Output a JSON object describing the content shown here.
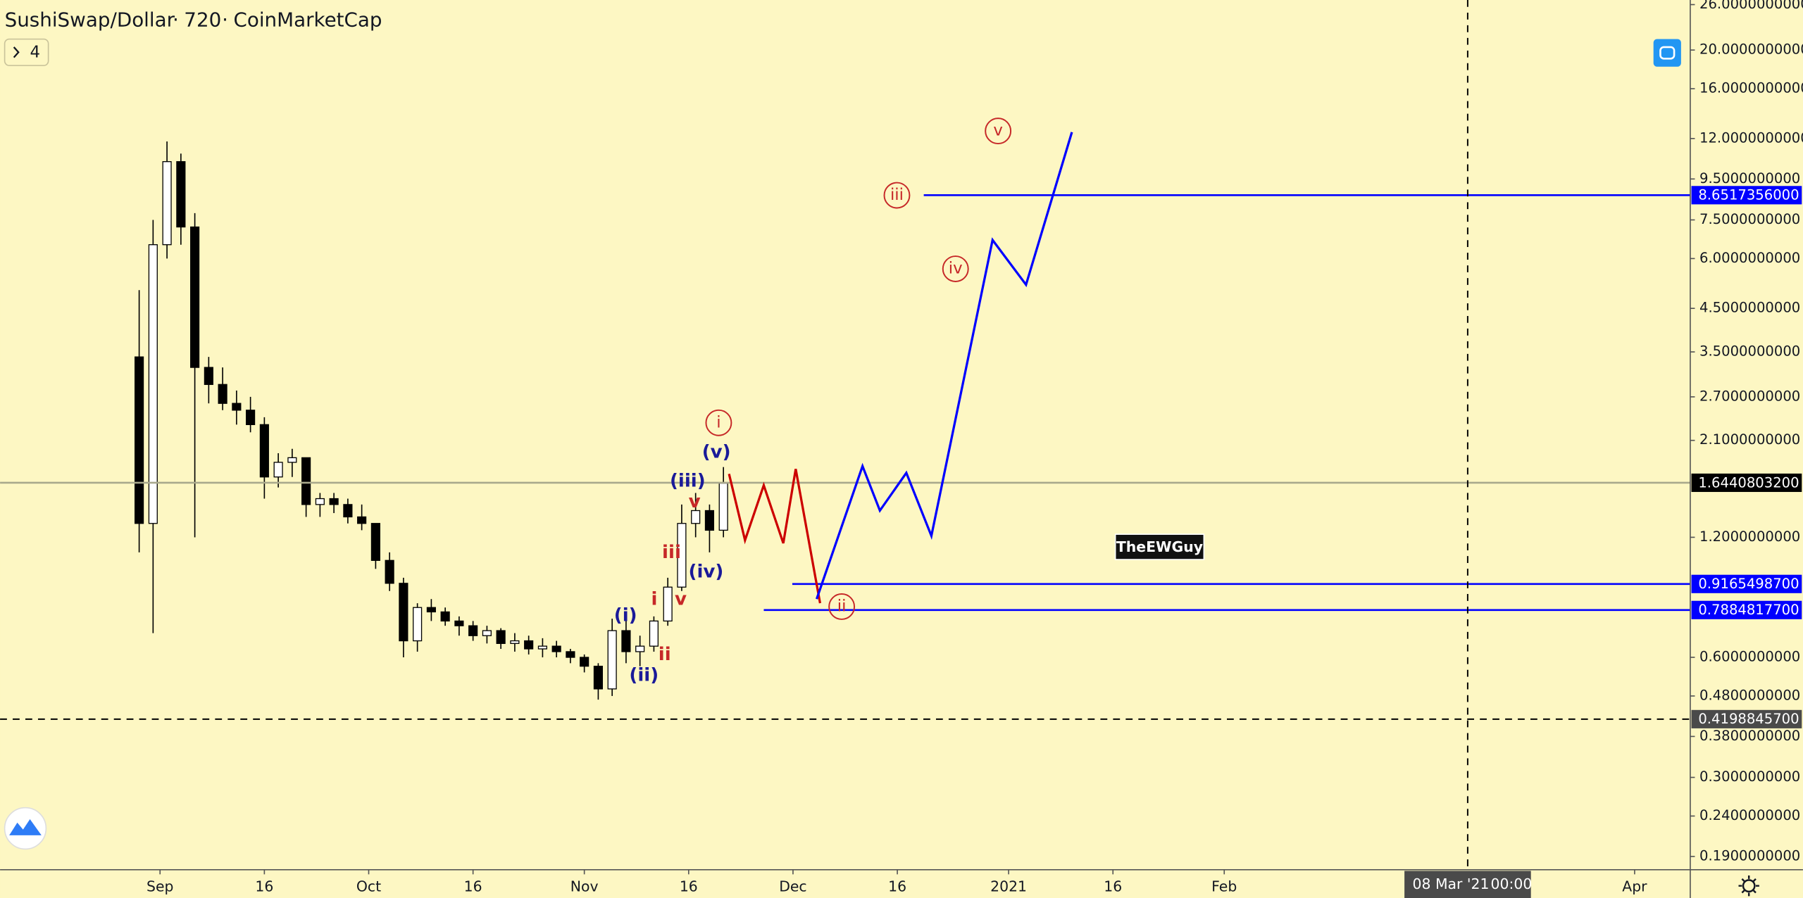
{
  "chart_data": {
    "type": "candlestick",
    "title": "SushiSwap/Dollar",
    "interval": "720",
    "source": "CoinMarketCap",
    "indicator_count": 4,
    "signature_label": "TheEWGuy",
    "log_scale": true,
    "grid": false,
    "up_color": "#ffffff",
    "down_color": "#000000",
    "wick_color": "#000000",
    "xlim": [
      -23,
      220
    ],
    "xticks": [
      {
        "value": 0,
        "label": "Sep"
      },
      {
        "value": 15,
        "label": "16"
      },
      {
        "value": 30,
        "label": "Oct"
      },
      {
        "value": 45,
        "label": "16"
      },
      {
        "value": 61,
        "label": "Nov"
      },
      {
        "value": 76,
        "label": "16"
      },
      {
        "value": 91,
        "label": "Dec"
      },
      {
        "value": 106,
        "label": "16"
      },
      {
        "value": 122,
        "label": "2021"
      },
      {
        "value": 137,
        "label": "16"
      },
      {
        "value": 153,
        "label": "Feb"
      },
      {
        "value": 212,
        "label": "Apr"
      }
    ],
    "ylim": [
      0.176,
      26.7
    ],
    "yticks": [
      {
        "value": 26,
        "label": "26.0000000000"
      },
      {
        "value": 20,
        "label": "20.0000000000"
      },
      {
        "value": 16,
        "label": "16.0000000000"
      },
      {
        "value": 12,
        "label": "12.0000000000"
      },
      {
        "value": 9.5,
        "label": "9.5000000000"
      },
      {
        "value": 7.5,
        "label": "7.5000000000"
      },
      {
        "value": 6,
        "label": "6.0000000000"
      },
      {
        "value": 4.5,
        "label": "4.5000000000"
      },
      {
        "value": 3.5,
        "label": "3.5000000000"
      },
      {
        "value": 2.7,
        "label": "2.7000000000"
      },
      {
        "value": 2.1,
        "label": "2.1000000000"
      },
      {
        "value": 1.2,
        "label": "1.2000000000"
      },
      {
        "value": 0.6,
        "label": "0.6000000000"
      },
      {
        "value": 0.48,
        "label": "0.4800000000"
      },
      {
        "value": 0.38,
        "label": "0.3800000000"
      },
      {
        "value": 0.3,
        "label": "0.3000000000"
      },
      {
        "value": 0.24,
        "label": "0.2400000000"
      },
      {
        "value": 0.19,
        "label": "0.1900000000"
      }
    ],
    "x": [
      -3,
      -1,
      1,
      3,
      5,
      7,
      9,
      11,
      13,
      15,
      17,
      19,
      21,
      23,
      25,
      27,
      29,
      31,
      33,
      35,
      37,
      39,
      41,
      43,
      45,
      47,
      49,
      51,
      53,
      55,
      57,
      59,
      61,
      63,
      65,
      67,
      69,
      71,
      73,
      75,
      77,
      79,
      81
    ],
    "open": [
      3.4,
      1.3,
      6.5,
      10.5,
      7.2,
      3.2,
      2.9,
      2.6,
      2.5,
      2.3,
      1.7,
      1.85,
      1.9,
      1.45,
      1.5,
      1.45,
      1.35,
      1.3,
      1.05,
      0.92,
      0.66,
      0.8,
      0.78,
      0.74,
      0.72,
      0.68,
      0.7,
      0.65,
      0.66,
      0.63,
      0.64,
      0.62,
      0.6,
      0.57,
      0.5,
      0.7,
      0.62,
      0.64,
      0.74,
      0.9,
      1.3,
      1.4,
      1.25
    ],
    "high": [
      5.0,
      7.5,
      11.8,
      11,
      7.8,
      3.4,
      3.2,
      2.8,
      2.7,
      2.4,
      1.95,
      2.0,
      1.9,
      1.55,
      1.55,
      1.5,
      1.45,
      1.3,
      1.1,
      0.95,
      0.82,
      0.84,
      0.8,
      0.76,
      0.74,
      0.72,
      0.71,
      0.69,
      0.68,
      0.67,
      0.66,
      0.63,
      0.61,
      0.58,
      0.75,
      0.74,
      0.68,
      0.76,
      0.95,
      1.45,
      1.55,
      1.45,
      1.8
    ],
    "low": [
      1.1,
      0.69,
      6.0,
      6.5,
      1.2,
      2.6,
      2.5,
      2.3,
      2.2,
      1.5,
      1.6,
      1.7,
      1.35,
      1.35,
      1.38,
      1.3,
      1.25,
      1.0,
      0.88,
      0.6,
      0.62,
      0.74,
      0.72,
      0.68,
      0.66,
      0.65,
      0.63,
      0.62,
      0.61,
      0.6,
      0.6,
      0.58,
      0.55,
      0.47,
      0.48,
      0.58,
      0.57,
      0.62,
      0.72,
      0.88,
      1.2,
      1.1,
      1.2
    ],
    "close": [
      1.3,
      6.5,
      10.5,
      7.2,
      3.2,
      2.9,
      2.6,
      2.5,
      2.3,
      1.7,
      1.85,
      1.9,
      1.45,
      1.5,
      1.45,
      1.35,
      1.3,
      1.05,
      0.92,
      0.66,
      0.8,
      0.78,
      0.74,
      0.72,
      0.68,
      0.7,
      0.65,
      0.66,
      0.63,
      0.64,
      0.62,
      0.6,
      0.57,
      0.5,
      0.7,
      0.62,
      0.64,
      0.74,
      0.9,
      1.3,
      1.4,
      1.25,
      1.64
    ],
    "price_lines": [
      {
        "value": 8.6517356,
        "label": "8.6517356000",
        "color": "#0000ff",
        "label_color": "#0000ff",
        "x_start": 109.8,
        "style": "solid"
      },
      {
        "value": 1.64408032,
        "label": "1.6440803200",
        "color": "#a9a98c",
        "label_color": "#000000",
        "style": "solid"
      },
      {
        "value": 0.91654987,
        "label": "0.9165498700",
        "color": "#0000ff",
        "label_color": "#0000ff",
        "x_start": 90.9,
        "style": "solid"
      },
      {
        "value": 0.78848177,
        "label": "0.7884817700",
        "color": "#0000ff",
        "label_color": "#0000ff",
        "x_start": 86.8,
        "style": "solid"
      },
      {
        "value": 0.41988457,
        "label": "0.4198845700",
        "color": "#000000",
        "label_color": "#4a4a4a",
        "style": "dashed"
      }
    ],
    "drawings": [
      {
        "color": "#cc0000",
        "x": [
          81.8,
          84.1,
          86.8,
          89.6,
          91.4,
          94.9
        ],
        "y": [
          1.73,
          1.18,
          1.62,
          1.16,
          1.78,
          0.82
        ]
      },
      {
        "color": "#0000ff",
        "x": [
          94.4,
          101.0,
          103.5,
          107.3,
          110.9,
          119.7,
          124.5,
          131.1
        ],
        "y": [
          0.84,
          1.81,
          1.4,
          1.74,
          1.21,
          6.68,
          5.16,
          12.45
        ]
      }
    ],
    "crosshair": {
      "x": 188,
      "label": "08 Mar '21",
      "time": "00:00"
    },
    "annotations": [
      {
        "text": "(i)",
        "color": "#1a1a99"
      },
      {
        "text": "(ii)",
        "color": "#1a1a99"
      },
      {
        "text": "(iii)",
        "color": "#1a1a99"
      },
      {
        "text": "(iv)",
        "color": "#1a1a99"
      },
      {
        "text": "(v)",
        "color": "#1a1a99"
      },
      {
        "text": "i",
        "color": "#c62828"
      },
      {
        "text": "ii",
        "color": "#c62828"
      },
      {
        "text": "iii",
        "color": "#c62828"
      },
      {
        "text": "v",
        "color": "#c62828"
      },
      {
        "text": "v",
        "color": "#c62828"
      },
      {
        "text": "i",
        "color": "#c62828",
        "circled": true
      },
      {
        "text": "ii",
        "color": "#c62828",
        "circled": true
      },
      {
        "text": "iii",
        "color": "#c62828",
        "circled": true
      },
      {
        "text": "iv",
        "color": "#c62828",
        "circled": true
      },
      {
        "text": "v",
        "color": "#c62828",
        "circled": true
      }
    ]
  }
}
